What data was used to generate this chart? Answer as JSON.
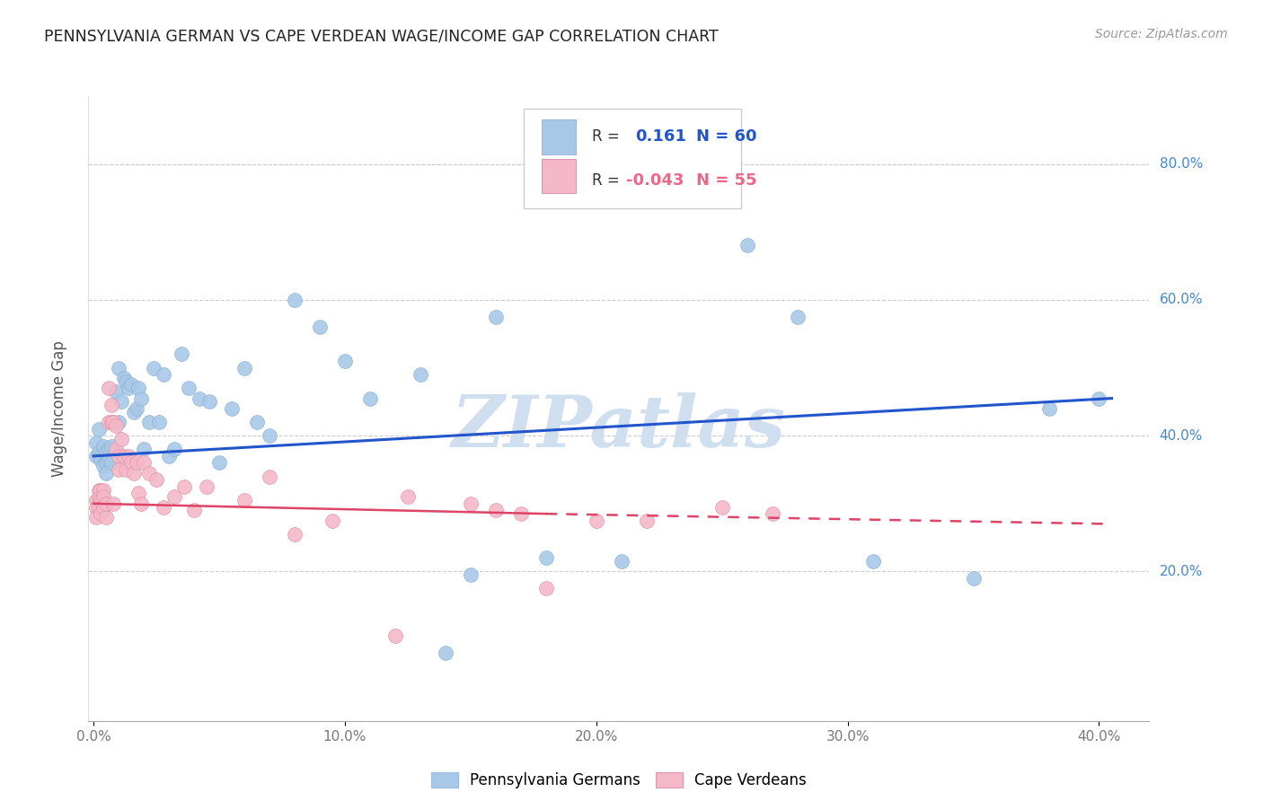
{
  "title": "PENNSYLVANIA GERMAN VS CAPE VERDEAN WAGE/INCOME GAP CORRELATION CHART",
  "source": "Source: ZipAtlas.com",
  "ylabel": "Wage/Income Gap",
  "R_blue": 0.161,
  "N_blue": 60,
  "R_pink": -0.043,
  "N_pink": 55,
  "legend_label_blue": "Pennsylvania Germans",
  "legend_label_pink": "Cape Verdeans",
  "bg_color": "#ffffff",
  "grid_color": "#cccccc",
  "blue_dot_color": "#a8c8e8",
  "pink_dot_color": "#f4b8c8",
  "blue_line_color": "#2255cc",
  "pink_line_color": "#ee6688",
  "pink_line_solid_color": "#dd4466",
  "watermark_color": "#d0dff0",
  "title_color": "#222222",
  "source_color": "#999999",
  "yaxis_color": "#4488cc",
  "xlim": [
    -0.002,
    0.42
  ],
  "ylim": [
    -0.02,
    0.9
  ],
  "blue_line_x0": 0.0,
  "blue_line_y0": 0.37,
  "blue_line_x1": 0.405,
  "blue_line_y1": 0.455,
  "pink_line_solid_x0": 0.0,
  "pink_line_solid_y0": 0.3,
  "pink_line_solid_x1": 0.18,
  "pink_line_solid_y1": 0.285,
  "pink_line_dash_x0": 0.18,
  "pink_line_dash_y0": 0.285,
  "pink_line_dash_x1": 0.405,
  "pink_line_dash_y1": 0.27,
  "blue_scatter_x": [
    0.001,
    0.001,
    0.002,
    0.002,
    0.003,
    0.003,
    0.004,
    0.004,
    0.005,
    0.005,
    0.005,
    0.006,
    0.006,
    0.007,
    0.007,
    0.008,
    0.009,
    0.01,
    0.01,
    0.011,
    0.012,
    0.013,
    0.014,
    0.015,
    0.016,
    0.017,
    0.018,
    0.019,
    0.02,
    0.022,
    0.024,
    0.026,
    0.028,
    0.03,
    0.032,
    0.035,
    0.038,
    0.042,
    0.046,
    0.05,
    0.055,
    0.06,
    0.065,
    0.07,
    0.08,
    0.09,
    0.1,
    0.11,
    0.13,
    0.14,
    0.15,
    0.16,
    0.18,
    0.21,
    0.26,
    0.28,
    0.31,
    0.35,
    0.38,
    0.4
  ],
  "blue_scatter_y": [
    0.39,
    0.37,
    0.41,
    0.375,
    0.37,
    0.365,
    0.385,
    0.355,
    0.375,
    0.36,
    0.345,
    0.38,
    0.365,
    0.385,
    0.36,
    0.42,
    0.465,
    0.5,
    0.42,
    0.45,
    0.485,
    0.48,
    0.47,
    0.475,
    0.435,
    0.44,
    0.47,
    0.455,
    0.38,
    0.42,
    0.5,
    0.42,
    0.49,
    0.37,
    0.38,
    0.52,
    0.47,
    0.455,
    0.45,
    0.36,
    0.44,
    0.5,
    0.42,
    0.4,
    0.6,
    0.56,
    0.51,
    0.455,
    0.49,
    0.08,
    0.195,
    0.575,
    0.22,
    0.215,
    0.68,
    0.575,
    0.215,
    0.19,
    0.44,
    0.455
  ],
  "pink_scatter_x": [
    0.001,
    0.001,
    0.001,
    0.002,
    0.002,
    0.002,
    0.003,
    0.003,
    0.003,
    0.004,
    0.004,
    0.004,
    0.005,
    0.005,
    0.006,
    0.006,
    0.007,
    0.007,
    0.008,
    0.008,
    0.009,
    0.009,
    0.01,
    0.01,
    0.011,
    0.012,
    0.013,
    0.014,
    0.015,
    0.016,
    0.017,
    0.018,
    0.019,
    0.02,
    0.022,
    0.025,
    0.028,
    0.032,
    0.036,
    0.04,
    0.045,
    0.06,
    0.07,
    0.08,
    0.095,
    0.12,
    0.125,
    0.15,
    0.16,
    0.17,
    0.18,
    0.2,
    0.22,
    0.25,
    0.27
  ],
  "pink_scatter_y": [
    0.305,
    0.295,
    0.28,
    0.32,
    0.31,
    0.295,
    0.32,
    0.305,
    0.285,
    0.32,
    0.31,
    0.295,
    0.28,
    0.3,
    0.47,
    0.42,
    0.445,
    0.42,
    0.3,
    0.42,
    0.415,
    0.38,
    0.37,
    0.35,
    0.395,
    0.37,
    0.35,
    0.37,
    0.36,
    0.345,
    0.36,
    0.315,
    0.3,
    0.36,
    0.345,
    0.335,
    0.295,
    0.31,
    0.325,
    0.29,
    0.325,
    0.305,
    0.34,
    0.255,
    0.275,
    0.105,
    0.31,
    0.3,
    0.29,
    0.285,
    0.175,
    0.275,
    0.275,
    0.295,
    0.285
  ]
}
